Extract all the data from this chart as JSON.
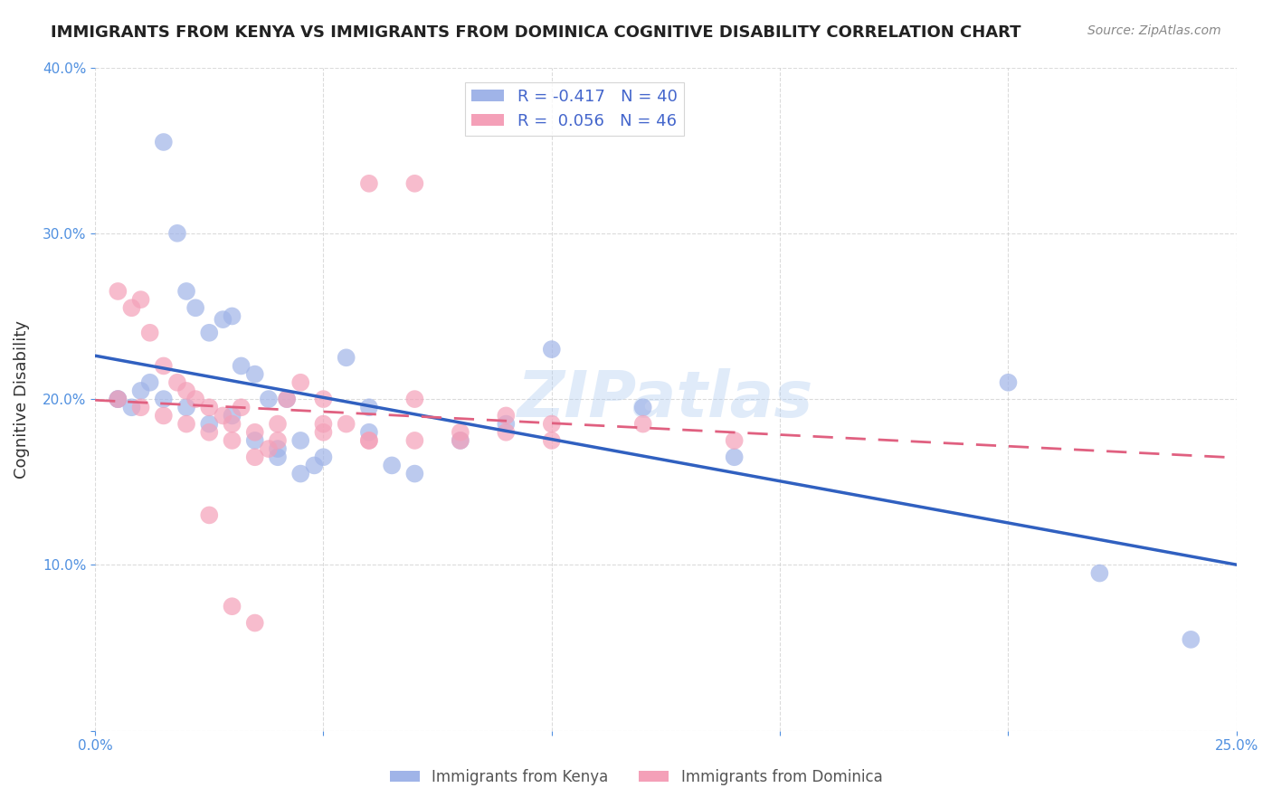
{
  "title": "IMMIGRANTS FROM KENYA VS IMMIGRANTS FROM DOMINICA COGNITIVE DISABILITY CORRELATION CHART",
  "source": "Source: ZipAtlas.com",
  "xlabel": "",
  "ylabel": "Cognitive Disability",
  "xlim": [
    0.0,
    0.25
  ],
  "ylim": [
    0.0,
    0.4
  ],
  "xticks": [
    0.0,
    0.05,
    0.1,
    0.15,
    0.2,
    0.25
  ],
  "yticks": [
    0.0,
    0.1,
    0.2,
    0.3,
    0.4
  ],
  "xticklabels": [
    "0.0%",
    "",
    "",
    "",
    "",
    "25.0%"
  ],
  "yticklabels": [
    "",
    "10.0%",
    "20.0%",
    "30.0%",
    "40.0%"
  ],
  "kenya_color": "#a0b4e8",
  "dominica_color": "#f4a0b8",
  "kenya_line_color": "#3060c0",
  "dominica_line_color": "#e06080",
  "kenya_R": -0.417,
  "kenya_N": 40,
  "dominica_R": 0.056,
  "dominica_N": 46,
  "kenya_scatter_x": [
    0.005,
    0.008,
    0.012,
    0.015,
    0.018,
    0.02,
    0.022,
    0.025,
    0.028,
    0.03,
    0.032,
    0.035,
    0.038,
    0.04,
    0.042,
    0.045,
    0.048,
    0.05,
    0.055,
    0.06,
    0.005,
    0.01,
    0.015,
    0.02,
    0.025,
    0.03,
    0.035,
    0.04,
    0.045,
    0.06,
    0.065,
    0.07,
    0.08,
    0.09,
    0.1,
    0.12,
    0.14,
    0.2,
    0.22,
    0.24
  ],
  "kenya_scatter_y": [
    0.2,
    0.195,
    0.21,
    0.355,
    0.3,
    0.265,
    0.255,
    0.24,
    0.248,
    0.25,
    0.22,
    0.215,
    0.2,
    0.17,
    0.2,
    0.155,
    0.16,
    0.165,
    0.225,
    0.195,
    0.2,
    0.205,
    0.2,
    0.195,
    0.185,
    0.19,
    0.175,
    0.165,
    0.175,
    0.18,
    0.16,
    0.155,
    0.175,
    0.185,
    0.23,
    0.195,
    0.165,
    0.21,
    0.095,
    0.055
  ],
  "dominica_scatter_x": [
    0.005,
    0.008,
    0.01,
    0.012,
    0.015,
    0.018,
    0.02,
    0.022,
    0.025,
    0.028,
    0.03,
    0.032,
    0.035,
    0.038,
    0.04,
    0.042,
    0.045,
    0.05,
    0.055,
    0.06,
    0.005,
    0.01,
    0.015,
    0.02,
    0.025,
    0.03,
    0.035,
    0.04,
    0.05,
    0.06,
    0.07,
    0.08,
    0.1,
    0.12,
    0.14,
    0.06,
    0.07,
    0.08,
    0.09,
    0.1,
    0.025,
    0.03,
    0.035,
    0.05,
    0.07,
    0.09
  ],
  "dominica_scatter_y": [
    0.265,
    0.255,
    0.26,
    0.24,
    0.22,
    0.21,
    0.205,
    0.2,
    0.195,
    0.19,
    0.185,
    0.195,
    0.18,
    0.17,
    0.185,
    0.2,
    0.21,
    0.2,
    0.185,
    0.175,
    0.2,
    0.195,
    0.19,
    0.185,
    0.18,
    0.175,
    0.165,
    0.175,
    0.18,
    0.175,
    0.175,
    0.18,
    0.175,
    0.185,
    0.175,
    0.33,
    0.33,
    0.175,
    0.18,
    0.185,
    0.13,
    0.075,
    0.065,
    0.185,
    0.2,
    0.19
  ],
  "watermark": "ZIPatlas",
  "background_color": "#ffffff",
  "grid_color": "#cccccc",
  "tick_color": "#5090e0",
  "label_color": "#333333",
  "legend_label_color": "#4466cc",
  "bottom_legend_color": "#555555",
  "source_color": "#888888",
  "title_color": "#222222"
}
